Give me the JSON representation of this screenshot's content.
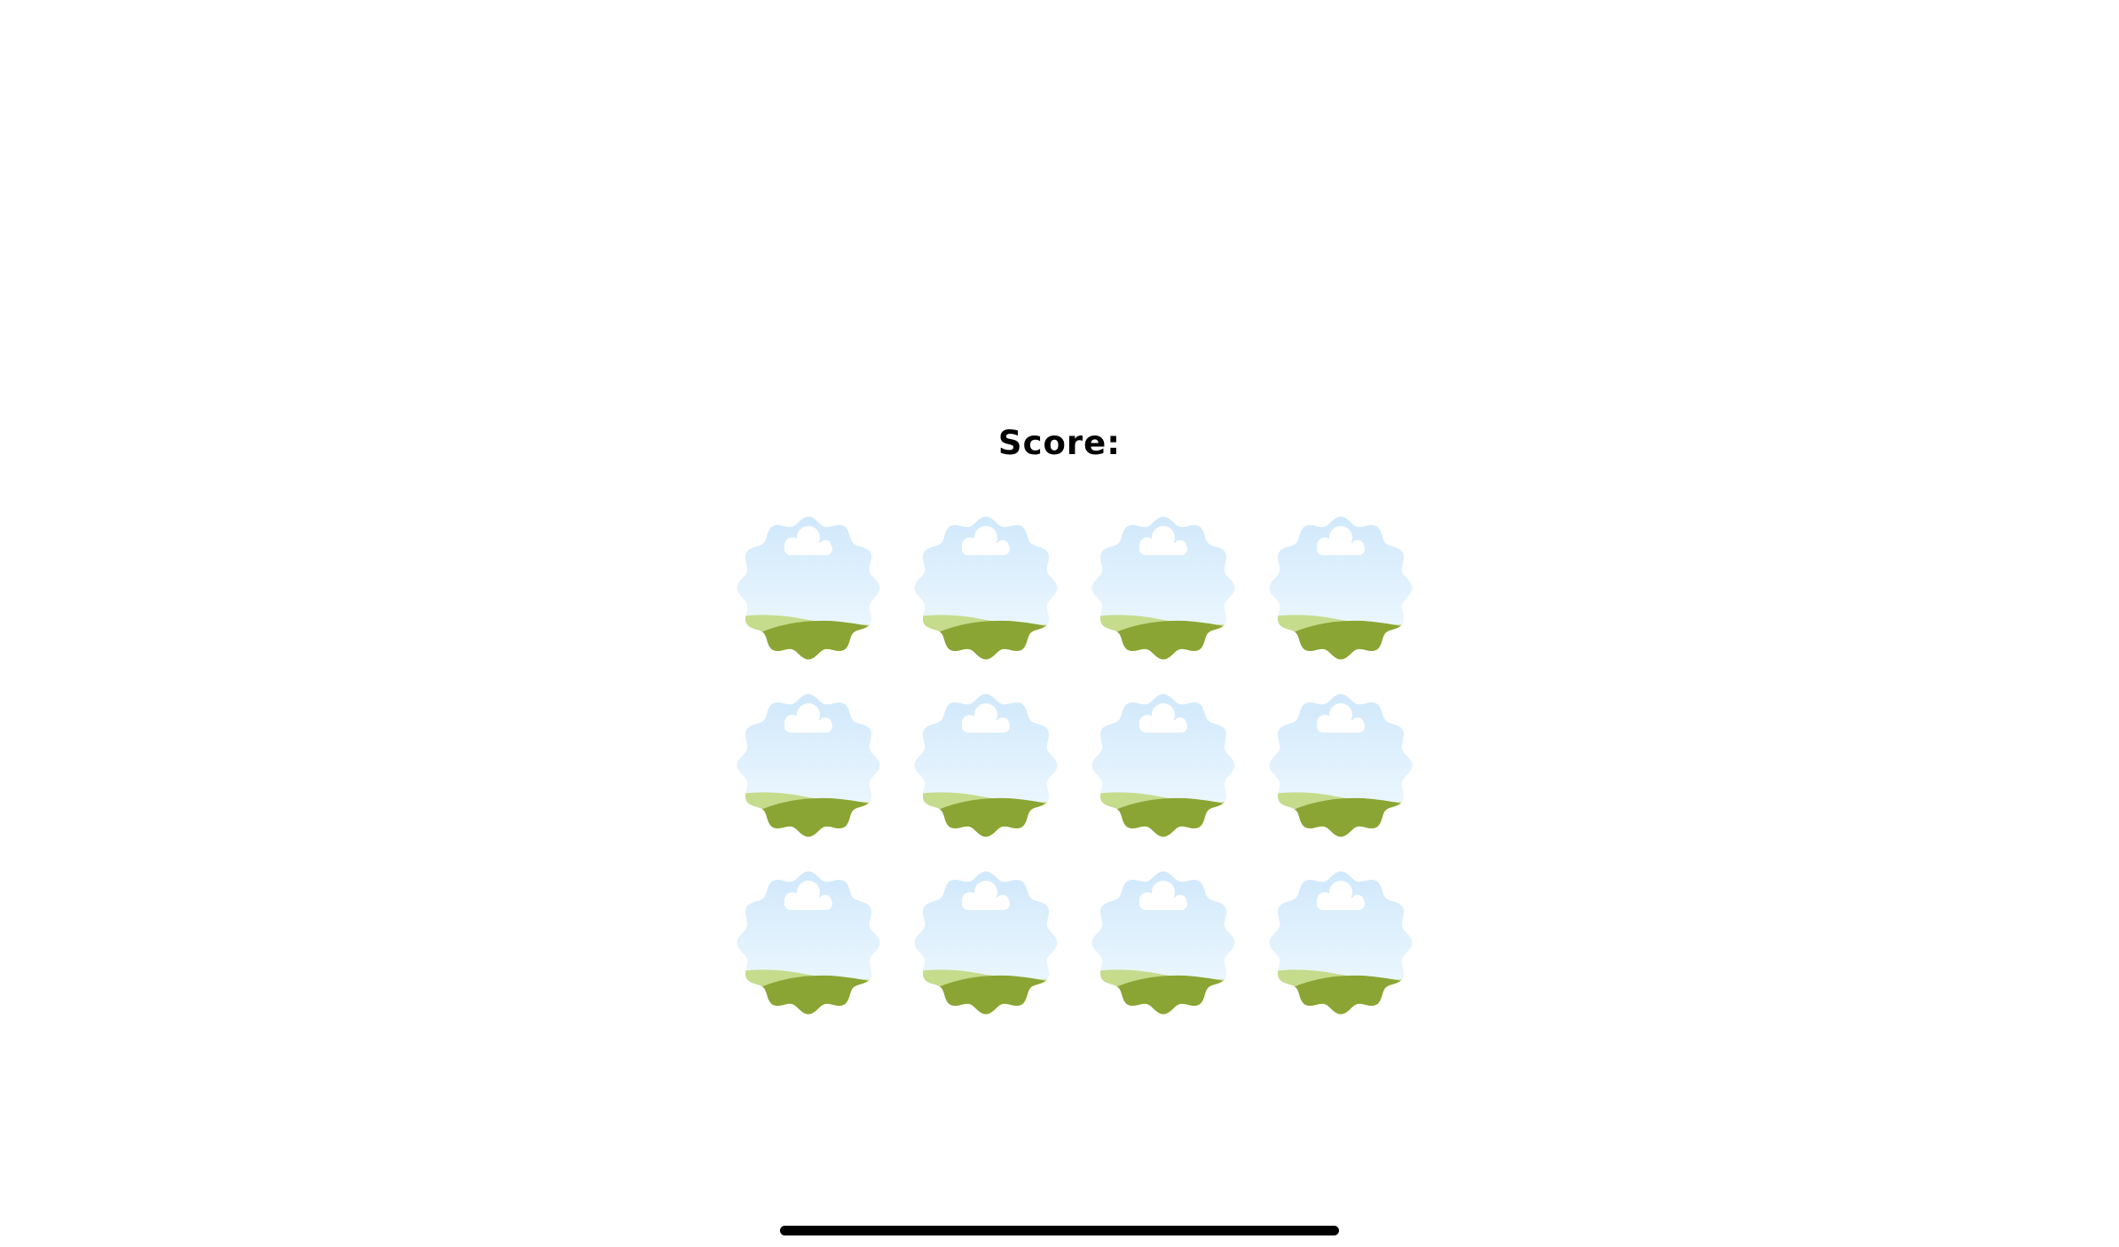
{
  "game": {
    "score_label": "Score:"
  },
  "board": {
    "rows": 3,
    "columns": 4,
    "tiles": [
      {
        "id": "r1c1",
        "icon": "cloud-hill-icon"
      },
      {
        "id": "r1c2",
        "icon": "cloud-hill-icon"
      },
      {
        "id": "r1c3",
        "icon": "cloud-hill-icon"
      },
      {
        "id": "r1c4",
        "icon": "cloud-hill-icon"
      },
      {
        "id": "r2c1",
        "icon": "cloud-hill-icon"
      },
      {
        "id": "r2c2",
        "icon": "cloud-hill-icon"
      },
      {
        "id": "r2c3",
        "icon": "cloud-hill-icon"
      },
      {
        "id": "r2c4",
        "icon": "cloud-hill-icon"
      },
      {
        "id": "r3c1",
        "icon": "cloud-hill-icon"
      },
      {
        "id": "r3c2",
        "icon": "cloud-hill-icon"
      },
      {
        "id": "r3c3",
        "icon": "cloud-hill-icon"
      },
      {
        "id": "r3c4",
        "icon": "cloud-hill-icon"
      }
    ]
  },
  "colors": {
    "sky_top": "#cfe8fb",
    "sky_bottom": "#f4fbff",
    "cloud": "#ffffff",
    "hill_light": "#c5dc8c",
    "hill_dark": "#8aa533",
    "home_indicator": "#000000"
  }
}
